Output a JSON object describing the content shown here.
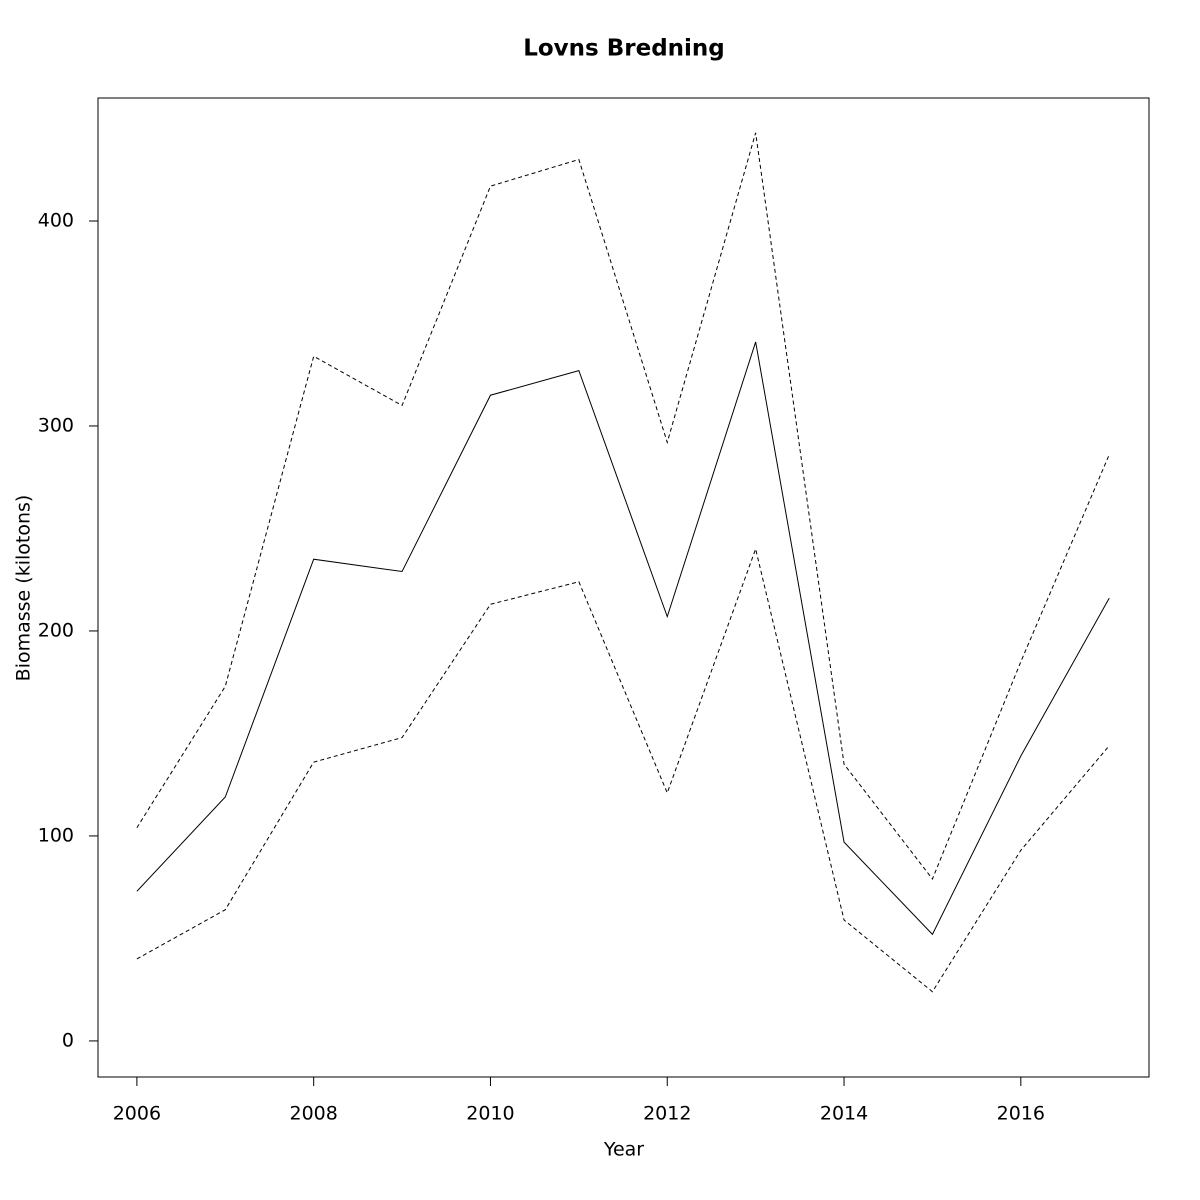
{
  "chart_data": {
    "type": "line",
    "title": "Lovns Bredning",
    "xlabel": "Year",
    "ylabel": "Biomasse (kilotons)",
    "x": [
      2006,
      2007,
      2008,
      2009,
      2010,
      2011,
      2012,
      2013,
      2014,
      2015,
      2016,
      2017
    ],
    "series": [
      {
        "color": "#000000",
        "linestyle": "solid",
        "values": [
          73,
          119,
          235,
          229,
          315,
          327,
          207,
          341,
          97,
          52,
          139,
          216
        ]
      },
      {
        "color": "#000000",
        "linestyle": "dashed",
        "values": [
          104,
          173,
          334,
          310,
          417,
          430,
          292,
          443,
          135,
          79,
          185,
          286
        ]
      },
      {
        "color": "#000000",
        "linestyle": "dashed",
        "values": [
          40,
          64,
          136,
          148,
          213,
          224,
          121,
          240,
          59,
          24,
          93,
          144
        ]
      }
    ],
    "xlim": [
      2005.56,
      2017.45
    ],
    "ylim": [
      -17.6,
      460
    ],
    "xticks": [
      2006,
      2008,
      2010,
      2012,
      2014,
      2016
    ],
    "yticks": [
      0,
      100,
      200,
      300,
      400
    ],
    "grid": false
  }
}
